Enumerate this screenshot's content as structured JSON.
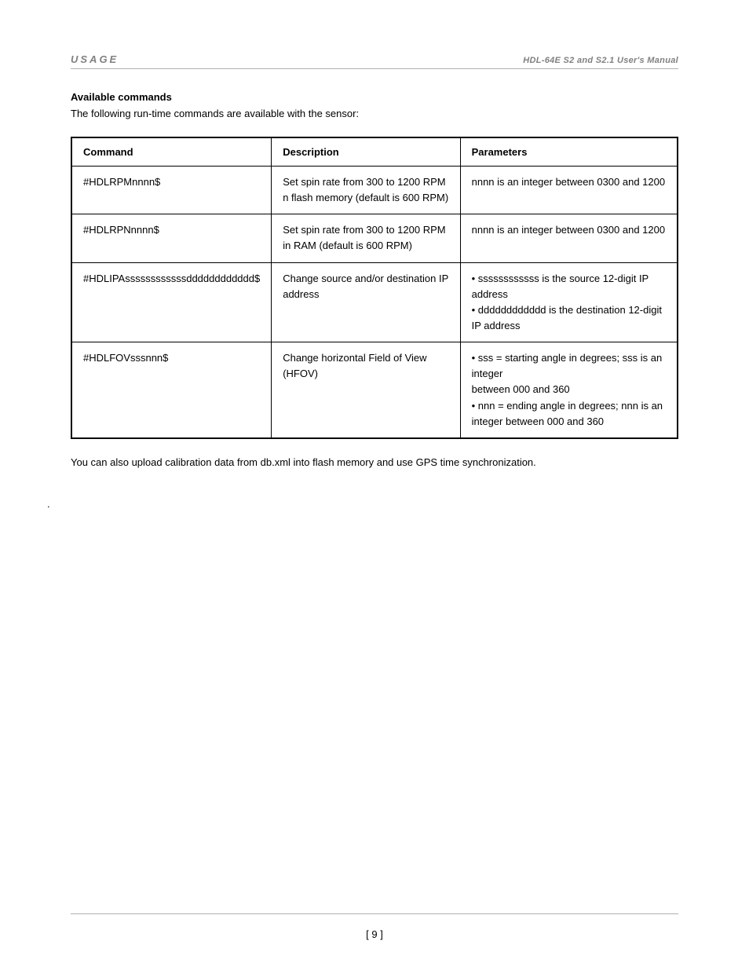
{
  "header": {
    "left": "USAGE",
    "right": "HDL-64E S2 and S2.1 User's Manual"
  },
  "section_title": "Available commands",
  "intro": "The following run-time commands are available with the sensor:",
  "table": {
    "columns": [
      "Command",
      "Description",
      "Parameters"
    ],
    "rows": [
      {
        "command": "#HDLRPMnnnn$",
        "description": "Set spin rate from 300 to 1200 RPM n flash memory (default is 600 RPM)",
        "parameters": [
          "nnnn is an integer between 0300 and 1200"
        ]
      },
      {
        "command": "#HDLRPNnnnn$",
        "description": "Set spin rate from 300 to 1200 RPM  in RAM (default is 600 RPM)",
        "parameters": [
          "nnnn is an integer between 0300 and 1200"
        ]
      },
      {
        "command": "#HDLIPAssssssssssssdddddddddddd$",
        "description": "Change source and/or destination IP address",
        "parameters": [
          "• ssssssssssss is the source 12-digit IP address",
          "• dddddddddddd is the destination 12-digit",
          "  IP address"
        ]
      },
      {
        "command": "#HDLFOVsssnnn$",
        "description": "Change horizontal Field of View (HFOV)",
        "parameters": [
          "• sss = starting angle in degrees; sss is an integer",
          "  between 000 and 360",
          "• nnn = ending angle in degrees; nnn is an",
          "  integer between 000 and 360"
        ]
      }
    ]
  },
  "closing": "You can also upload calibration data from db.xml into flash memory and use GPS time synchronization.",
  "dot": ".",
  "page_number": "[ 9 ]",
  "styling": {
    "text_color": "#000000",
    "muted_color": "#808080",
    "rule_color": "#b0b0b0",
    "border_color": "#000000",
    "background": "#ffffff",
    "body_fontsize": 13,
    "header_left_fontsize": 13,
    "header_right_fontsize": 11,
    "line_height": 1.55
  }
}
